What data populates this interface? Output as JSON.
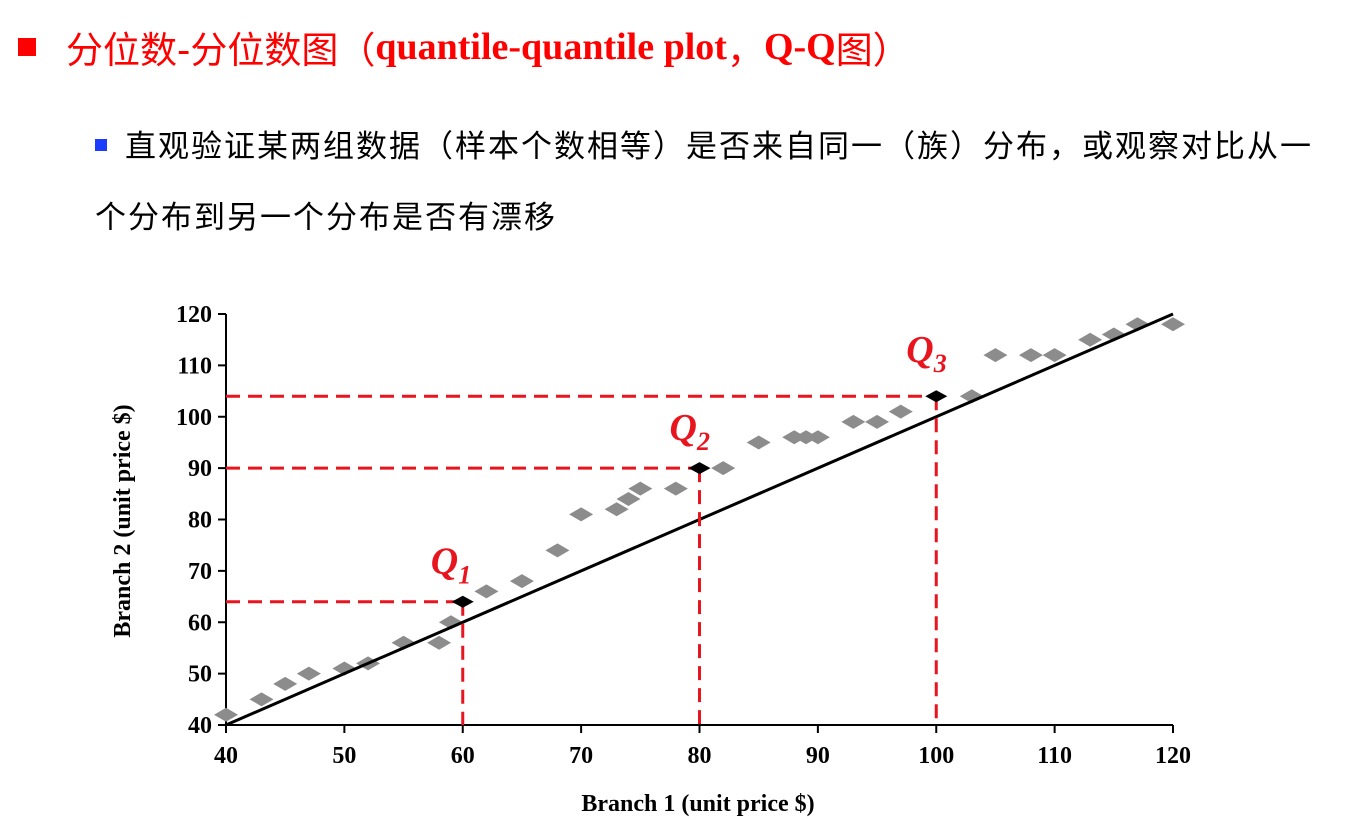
{
  "heading": {
    "cn": "分位数-分位数图（",
    "en": "quantile-quantile plot",
    "sep": "，",
    "qq": "Q-Q",
    "tail": "图）"
  },
  "paragraph": "直观验证某两组数据（样本个数相等）是否来自同一（族）分布，或观察对比从一个分布到另一个分布是否有漂移",
  "colors": {
    "heading": "#ff0000",
    "bullet_sub": "#1a3cff",
    "points": "#8c8c8c",
    "quartile_points": "#000000",
    "quartile_lines": "#e8141e",
    "reference_line": "#000000"
  },
  "chart_data": {
    "type": "scatter",
    "xlabel": "Branch 1 (unit price $)",
    "ylabel": "Branch 2 (unit price $)",
    "xlim": [
      40,
      120
    ],
    "ylim": [
      40,
      120
    ],
    "xticks": [
      40,
      50,
      60,
      70,
      80,
      90,
      100,
      110,
      120
    ],
    "yticks": [
      40,
      50,
      60,
      70,
      80,
      90,
      100,
      110,
      120
    ],
    "grid": false,
    "reference_line": {
      "from": [
        40,
        40
      ],
      "to": [
        120,
        120
      ]
    },
    "points": [
      [
        40,
        42
      ],
      [
        43,
        45
      ],
      [
        45,
        48
      ],
      [
        47,
        50
      ],
      [
        50,
        51
      ],
      [
        52,
        52
      ],
      [
        55,
        56
      ],
      [
        58,
        56
      ],
      [
        59,
        60
      ],
      [
        62,
        66
      ],
      [
        65,
        68
      ],
      [
        68,
        74
      ],
      [
        70,
        81
      ],
      [
        73,
        82
      ],
      [
        74,
        84
      ],
      [
        75,
        86
      ],
      [
        78,
        86
      ],
      [
        82,
        90
      ],
      [
        85,
        95
      ],
      [
        88,
        96
      ],
      [
        89,
        96
      ],
      [
        90,
        96
      ],
      [
        93,
        99
      ],
      [
        95,
        99
      ],
      [
        97,
        101
      ],
      [
        103,
        104
      ],
      [
        105,
        112
      ],
      [
        108,
        112
      ],
      [
        110,
        112
      ],
      [
        113,
        115
      ],
      [
        115,
        116
      ],
      [
        117,
        118
      ],
      [
        120,
        118
      ]
    ],
    "quartiles": [
      {
        "name": "Q",
        "sub": "1",
        "x": 60,
        "y": 64
      },
      {
        "name": "Q",
        "sub": "2",
        "x": 80,
        "y": 90
      },
      {
        "name": "Q",
        "sub": "3",
        "x": 100,
        "y": 104
      }
    ]
  }
}
